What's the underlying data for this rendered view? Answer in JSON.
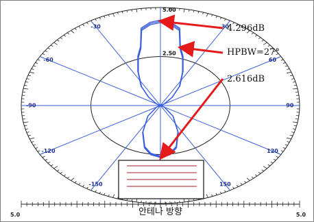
{
  "chart_data": {
    "type": "polar",
    "ring_labels": [
      "5.00",
      "2.50"
    ],
    "ring_values": [
      5.0,
      2.5
    ],
    "r_max": 5.0,
    "angle_labels": [
      {
        "deg": -30,
        "label": "-30"
      },
      {
        "deg": -60,
        "label": "-60"
      },
      {
        "deg": -90,
        "label": "-90"
      },
      {
        "deg": -120,
        "label": "-120"
      },
      {
        "deg": -150,
        "label": "-150"
      },
      {
        "deg": 30,
        "label": "30"
      },
      {
        "deg": 60,
        "label": "60"
      },
      {
        "deg": 90,
        "label": "90"
      },
      {
        "deg": 120,
        "label": "120"
      },
      {
        "deg": 150,
        "label": "150"
      }
    ],
    "series": [
      {
        "points": [
          {
            "deg": 0,
            "r": 4.296
          },
          {
            "deg": 5,
            "r": 4.2
          },
          {
            "deg": 10,
            "r": 3.95
          },
          {
            "deg": 13.5,
            "r": 3.04
          },
          {
            "deg": 18,
            "r": 2.6
          },
          {
            "deg": 25,
            "r": 1.9
          },
          {
            "deg": 35,
            "r": 1.2
          },
          {
            "deg": 45,
            "r": 0.6
          },
          {
            "deg": 60,
            "r": 0.15
          },
          {
            "deg": 90,
            "r": 0.0
          },
          {
            "deg": 120,
            "r": 0.15
          },
          {
            "deg": 140,
            "r": 0.7
          },
          {
            "deg": 155,
            "r": 1.5
          },
          {
            "deg": 165,
            "r": 2.2
          },
          {
            "deg": 172,
            "r": 2.5
          },
          {
            "deg": 180,
            "r": 2.616
          },
          {
            "deg": 188,
            "r": 2.5
          },
          {
            "deg": 195,
            "r": 2.2
          },
          {
            "deg": 205,
            "r": 1.5
          },
          {
            "deg": 220,
            "r": 0.7
          },
          {
            "deg": 240,
            "r": 0.15
          },
          {
            "deg": 270,
            "r": 0.0
          },
          {
            "deg": 300,
            "r": 0.15
          },
          {
            "deg": 315,
            "r": 0.6
          },
          {
            "deg": 325,
            "r": 1.2
          },
          {
            "deg": 335,
            "r": 1.9
          },
          {
            "deg": 342,
            "r": 2.6
          },
          {
            "deg": 346.5,
            "r": 3.04
          },
          {
            "deg": 350,
            "r": 3.95
          },
          {
            "deg": 355,
            "r": 4.2
          },
          {
            "deg": 360,
            "r": 4.296
          }
        ]
      }
    ],
    "annotations": [
      {
        "text": "4.296dB",
        "deg": 0,
        "r": 4.296
      },
      {
        "text": "HPBW=27°",
        "deg": 13.5,
        "r": 3.04
      },
      {
        "text": "2.616dB",
        "deg": 180,
        "r": 2.616
      }
    ],
    "scale_labels": {
      "left": "5.0",
      "right": "5.0"
    },
    "caption": "안테나 방향",
    "grid": true
  },
  "colors": {
    "pattern": "#3a5fe0",
    "spokes": "#3a5fd8",
    "arrow": "#e51b1b",
    "ring": "#222222",
    "legend_line": "#a02020"
  }
}
